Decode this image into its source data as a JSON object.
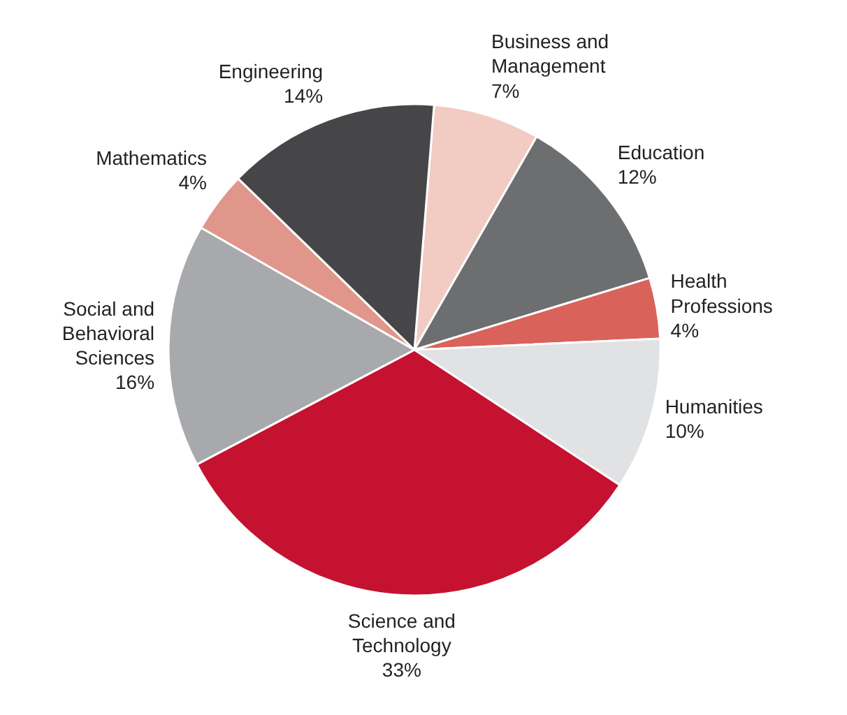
{
  "chart_data": {
    "type": "pie",
    "categories": [
      "Business and\nManagement",
      "Education",
      "Health\nProfessions",
      "Humanities",
      "Science and\nTechnology",
      "Social and\nBehavioral\nSciences",
      "Mathematics",
      "Engineering"
    ],
    "values": [
      7,
      12,
      4,
      10,
      33,
      16,
      4,
      14
    ],
    "value_labels": [
      "7%",
      "12%",
      "4%",
      "10%",
      "33%",
      "16%",
      "4%",
      "14%"
    ],
    "colors": [
      "#f2cbc3",
      "#6d6e70",
      "#d9625a",
      "#e1e2e4",
      "#c41230",
      "#a7a9ac",
      "#e0968a",
      "#464648"
    ]
  }
}
